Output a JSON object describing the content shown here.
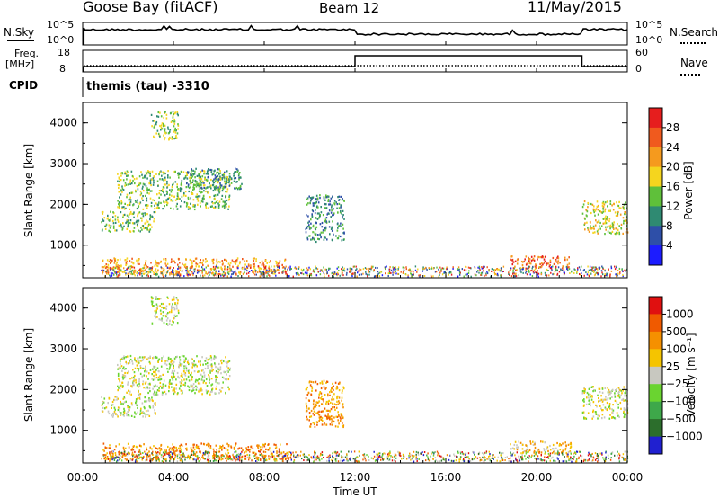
{
  "header": {
    "station": "Goose Bay (fitACF)",
    "beam": "Beam 12",
    "date": "11/May/2015"
  },
  "top_panel": {
    "left_label": "N.Sky",
    "left_ticks": [
      "10^5",
      "10^0"
    ],
    "right_ticks": [
      "10^5",
      "10^0"
    ],
    "right_label": "N.Search",
    "right_label_style": "dotted"
  },
  "freq_panel": {
    "left_label_1": "Freq.",
    "left_label_2": "[MHz]",
    "left_ticks": [
      "18",
      "8"
    ],
    "right_ticks": [
      "60",
      "0"
    ],
    "right_label": "Nave",
    "right_label_style": "dotted"
  },
  "cpid": {
    "label": "CPID",
    "value": "themis (tau)  -3310"
  },
  "chart_data": [
    {
      "type": "heatmap",
      "name_panel": "power",
      "ylabel": "Slant Range [km]",
      "yticks": [
        "1000",
        "2000",
        "3000",
        "4000"
      ],
      "ylim": [
        200,
        4500
      ],
      "xlim_hours": [
        0,
        24
      ],
      "colorbar": {
        "label": "Power [dB]",
        "ticks": [
          "4",
          "8",
          "12",
          "16",
          "20",
          "24",
          "28"
        ],
        "colors": [
          "#1c1cff",
          "#2e4fa8",
          "#2f8a72",
          "#5fc03a",
          "#f5d51e",
          "#f59a1e",
          "#f05a1e",
          "#e61e1e"
        ]
      },
      "scatter_regions": [
        {
          "t": [
            0.8,
            3.2
          ],
          "r": [
            1350,
            1850
          ],
          "level": 3
        },
        {
          "t": [
            1.5,
            6.5
          ],
          "r": [
            1900,
            2850
          ],
          "level": 3
        },
        {
          "t": [
            3.0,
            4.2
          ],
          "r": [
            3600,
            4300
          ],
          "level": 3
        },
        {
          "t": [
            4.5,
            7.0
          ],
          "r": [
            2400,
            2900
          ],
          "level": 2
        },
        {
          "t": [
            9.8,
            11.5
          ],
          "r": [
            1100,
            2250
          ],
          "level": 2
        },
        {
          "t": [
            0.8,
            9.0
          ],
          "r": [
            300,
            700
          ],
          "level": 5
        },
        {
          "t": [
            18.8,
            21.5
          ],
          "r": [
            450,
            750
          ],
          "level": 6
        },
        {
          "t": [
            22.0,
            24.0
          ],
          "r": [
            1300,
            2100
          ],
          "level": 4
        }
      ]
    },
    {
      "type": "heatmap",
      "name_panel": "velocity",
      "ylabel": "Slant Range [km]",
      "yticks": [
        "1000",
        "2000",
        "3000",
        "4000"
      ],
      "ylim": [
        200,
        4500
      ],
      "xlim_hours": [
        0,
        24
      ],
      "xticks": [
        "00:00",
        "04:00",
        "08:00",
        "12:00",
        "16:00",
        "20:00",
        "00:00"
      ],
      "xlabel": "Time UT",
      "colorbar": {
        "label": "Velocity [m s⁻¹]",
        "ticks": [
          "1000",
          "500",
          "100",
          "25",
          "−25",
          "−100",
          "−500",
          "−1000"
        ],
        "colors": [
          "#2020d0",
          "#2c6e2c",
          "#3ea84a",
          "#6ad430",
          "#c8c8c0",
          "#f5c400",
          "#f59000",
          "#f05a00",
          "#e01010"
        ]
      },
      "scatter_regions": [
        {
          "t": [
            0.8,
            3.2
          ],
          "r": [
            1350,
            1850
          ],
          "level": 4
        },
        {
          "t": [
            1.5,
            6.5
          ],
          "r": [
            1900,
            2850
          ],
          "level": 4
        },
        {
          "t": [
            3.0,
            4.2
          ],
          "r": [
            3600,
            4300
          ],
          "level": 4
        },
        {
          "t": [
            9.8,
            11.5
          ],
          "r": [
            1100,
            2250
          ],
          "level": 6
        },
        {
          "t": [
            0.8,
            9.0
          ],
          "r": [
            300,
            700
          ],
          "level": 6
        },
        {
          "t": [
            18.8,
            21.5
          ],
          "r": [
            450,
            750
          ],
          "level": 5
        },
        {
          "t": [
            22.0,
            24.0
          ],
          "r": [
            1300,
            2100
          ],
          "level": 4
        }
      ]
    }
  ]
}
